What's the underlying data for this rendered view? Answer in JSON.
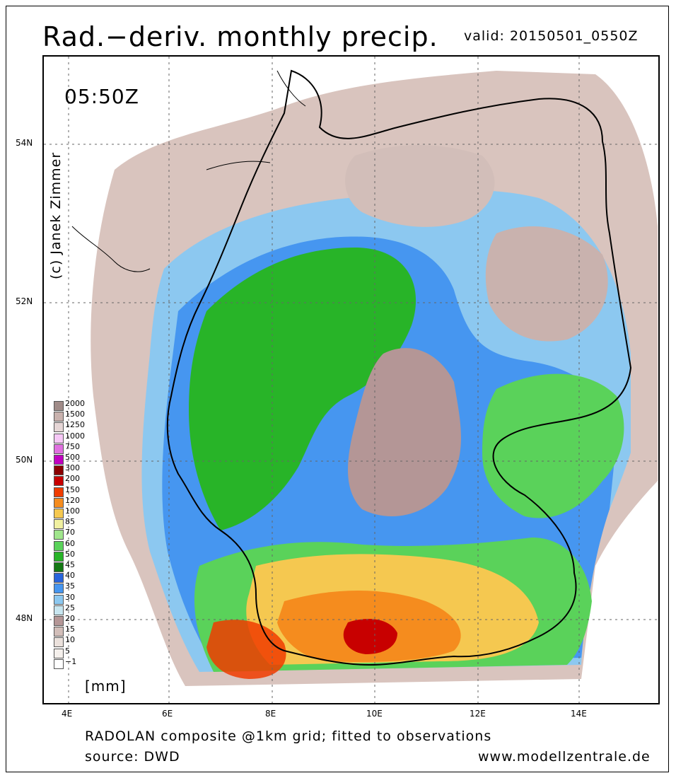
{
  "header": {
    "title": "Rad.−deriv. monthly precip.",
    "valid": "valid: 20150501_0550Z"
  },
  "map": {
    "time_label": "05:50Z",
    "credit": "(c) Janek Zimmer",
    "lat_ticks": [
      "54N",
      "52N",
      "50N",
      "48N"
    ],
    "lon_ticks": [
      "4E",
      "6E",
      "8E",
      "10E",
      "12E",
      "14E"
    ]
  },
  "legend": {
    "units": "[mm]",
    "levels": [
      {
        "label": "2000",
        "color": "#a08b88"
      },
      {
        "label": "1500",
        "color": "#c9b2ae"
      },
      {
        "label": "1250",
        "color": "#e6d6d6"
      },
      {
        "label": "1000",
        "color": "#f6c8f6"
      },
      {
        "label": "750",
        "color": "#e070e0"
      },
      {
        "label": "500",
        "color": "#c000c0"
      },
      {
        "label": "300",
        "color": "#8a0000"
      },
      {
        "label": "200",
        "color": "#c80000"
      },
      {
        "label": "150",
        "color": "#f03c00"
      },
      {
        "label": "120",
        "color": "#f58c1e"
      },
      {
        "label": "100",
        "color": "#f5c850"
      },
      {
        "label": "85",
        "color": "#f0f0a0"
      },
      {
        "label": "70",
        "color": "#a0e68c"
      },
      {
        "label": "60",
        "color": "#5ad25a"
      },
      {
        "label": "50",
        "color": "#28b428"
      },
      {
        "label": "45",
        "color": "#147814"
      },
      {
        "label": "40",
        "color": "#2864dc"
      },
      {
        "label": "35",
        "color": "#4696f0"
      },
      {
        "label": "30",
        "color": "#8cc8f0"
      },
      {
        "label": "25",
        "color": "#c8e6f0"
      },
      {
        "label": "20",
        "color": "#b49696"
      },
      {
        "label": "15",
        "color": "#d2beb9"
      },
      {
        "label": "10",
        "color": "#ebe1dc"
      },
      {
        "label": "5",
        "color": "#f5f0ec"
      },
      {
        "label": "−1",
        "color": "#ffffff"
      }
    ]
  },
  "footer": {
    "line1": "RADOLAN composite @1km grid; fitted to observations",
    "line2": "source: DWD",
    "site": "www.modellzentrale.de"
  }
}
